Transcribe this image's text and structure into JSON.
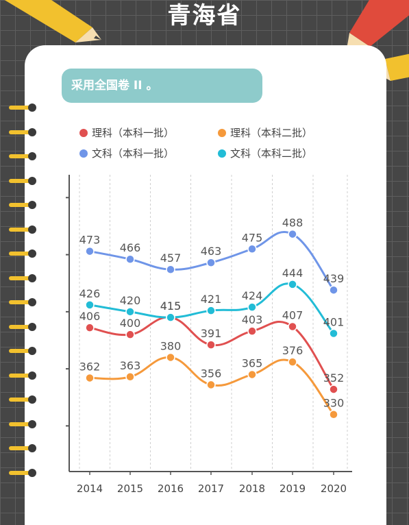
{
  "title": "青海省",
  "banner": "采用全国卷 II 。",
  "chart_data": {
    "type": "line",
    "x": [
      "2014",
      "2015",
      "2016",
      "2017",
      "2018",
      "2019",
      "2020"
    ],
    "series": [
      {
        "name": "理科（本科一批）",
        "color": "#e05050",
        "values": [
          406,
          400,
          415,
          391,
          403,
          407,
          352
        ]
      },
      {
        "name": "理科（本科二批）",
        "color": "#f5993b",
        "values": [
          362,
          363,
          380,
          356,
          365,
          376,
          330
        ]
      },
      {
        "name": "文科（本科一批）",
        "color": "#6f95e8",
        "values": [
          473,
          466,
          457,
          463,
          475,
          488,
          439
        ]
      },
      {
        "name": "文科（本科二批）",
        "color": "#22bcd6",
        "values": [
          426,
          420,
          415,
          421,
          424,
          444,
          401
        ]
      }
    ],
    "legend_position": "top",
    "grid": "vertical dashed",
    "ylim": [
      280,
      540
    ]
  }
}
